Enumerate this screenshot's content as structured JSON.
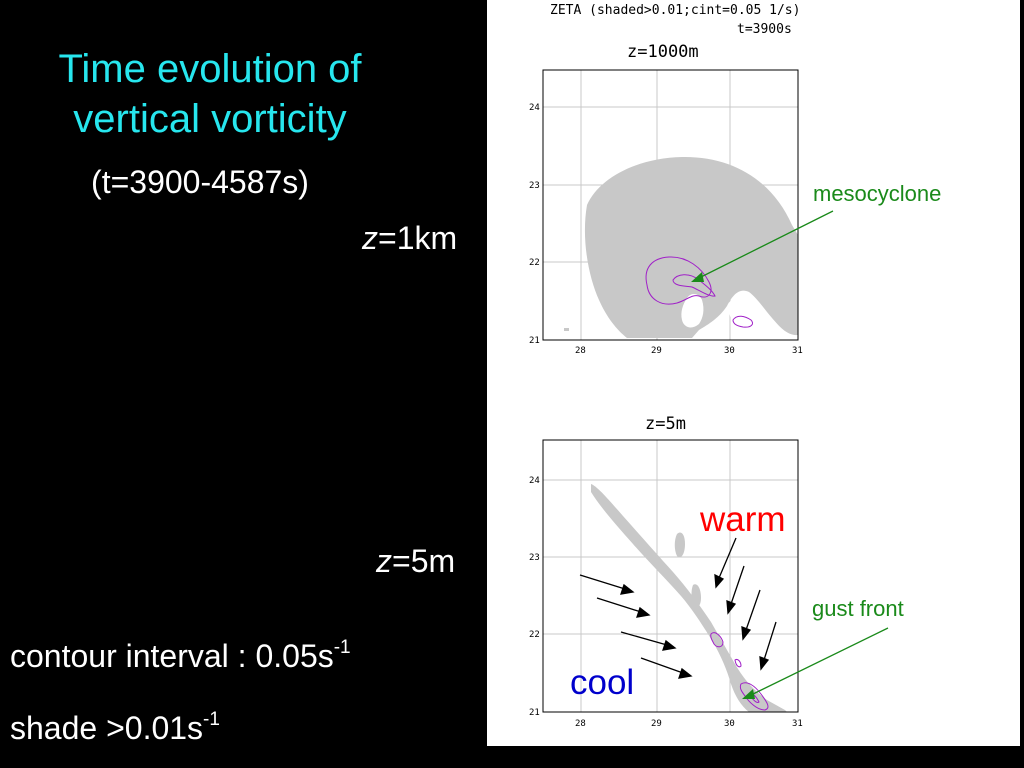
{
  "slide": {
    "title_line1": "Time evolution of",
    "title_line2": "vertical vorticity",
    "subtitle": "(t=3900-4587s)",
    "z1_label_var": "z",
    "z1_label_rest": "=1km",
    "z2_label_var": "z",
    "z2_label_rest": "=5m",
    "contour_text": "contour interval :  0.05s",
    "contour_exp": "-1",
    "shade_text": "shade >0.01s",
    "shade_exp": "-1"
  },
  "figure": {
    "header_line1": "ZETA (shaded>0.01;cint=0.05 1/s)",
    "header_line2": "t=3900s",
    "top_plot": {
      "title": "z=1000m",
      "xticks": [
        "28",
        "29",
        "30",
        "31"
      ],
      "yticks": [
        "24",
        "23",
        "22",
        "21"
      ]
    },
    "bottom_plot": {
      "title": "z=5m",
      "xticks": [
        "28",
        "29",
        "30",
        "31"
      ],
      "yticks": [
        "24",
        "23",
        "22",
        "21"
      ]
    },
    "annotations": {
      "mesocyclone": "mesocyclone",
      "gust_front": "gust front",
      "warm": "warm",
      "cool": "cool"
    },
    "colors": {
      "title": "#27e6ee",
      "shade": "#c8c8c8",
      "contour": "#a020c8",
      "green_annotation": "#1a8a1a",
      "warm": "#ff0000",
      "cool": "#0000cc"
    }
  }
}
